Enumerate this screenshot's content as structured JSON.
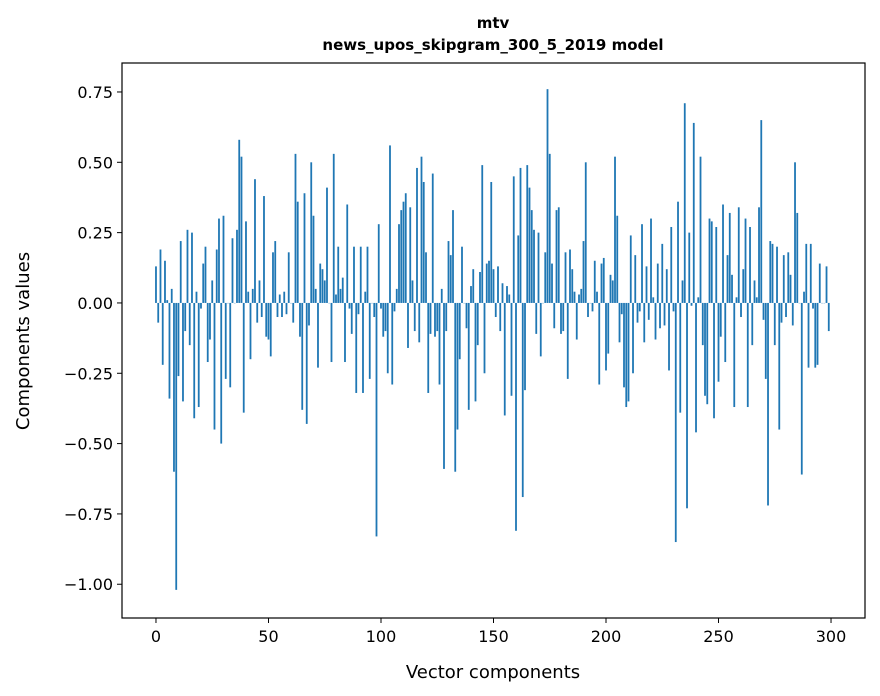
{
  "chart_data": {
    "type": "bar",
    "title": "mtv",
    "subtitle": "news_upos_skipgram_300_5_2019 model",
    "xlabel": "Vector components",
    "ylabel": "Components values",
    "xlim": [
      -15.1,
      315.1
    ],
    "ylim": [
      -1.12,
      0.853
    ],
    "xticks": [
      0,
      50,
      100,
      150,
      200,
      250,
      300
    ],
    "xtick_labels": [
      "0",
      "50",
      "100",
      "150",
      "200",
      "250",
      "300"
    ],
    "yticks": [
      0.75,
      0.5,
      0.25,
      0,
      -0.25,
      -0.5,
      -0.75,
      -1.0
    ],
    "ytick_labels": [
      "0.75",
      "0.50",
      "0.25",
      "0.00",
      "−0.25",
      "−0.50",
      "−0.75",
      "−1.00"
    ],
    "grid": false,
    "bar_color": "#1f77b4",
    "values": [
      0.13,
      -0.07,
      0.19,
      -0.22,
      0.15,
      0.01,
      -0.34,
      0.05,
      -0.6,
      -1.02,
      -0.26,
      0.22,
      -0.35,
      -0.1,
      0.26,
      -0.15,
      0.25,
      -0.41,
      0.04,
      -0.37,
      -0.02,
      0.14,
      0.2,
      -0.21,
      -0.13,
      0.08,
      -0.45,
      0.19,
      0.3,
      -0.5,
      0.31,
      -0.27,
      0.0,
      -0.3,
      0.23,
      0.0,
      0.26,
      0.58,
      0.52,
      -0.39,
      0.29,
      0.04,
      -0.2,
      0.05,
      0.44,
      -0.07,
      0.08,
      -0.05,
      0.38,
      -0.12,
      -0.13,
      -0.19,
      0.18,
      0.22,
      -0.05,
      0.03,
      -0.05,
      0.04,
      -0.04,
      0.18,
      0.0,
      -0.07,
      0.53,
      0.36,
      -0.12,
      -0.38,
      0.39,
      -0.43,
      -0.08,
      0.5,
      0.31,
      0.05,
      -0.23,
      0.14,
      0.12,
      0.08,
      0.41,
      0.0,
      -0.21,
      0.53,
      0.03,
      0.2,
      0.05,
      0.09,
      -0.21,
      0.35,
      -0.02,
      -0.11,
      0.2,
      -0.32,
      -0.04,
      0.2,
      -0.32,
      0.04,
      0.2,
      -0.27,
      0.0,
      -0.05,
      -0.83,
      0.28,
      -0.02,
      -0.12,
      -0.1,
      -0.25,
      0.56,
      -0.29,
      -0.03,
      0.05,
      0.28,
      0.33,
      0.36,
      0.39,
      -0.16,
      0.34,
      0.08,
      -0.1,
      0.48,
      -0.14,
      0.52,
      0.43,
      0.18,
      -0.32,
      -0.11,
      0.46,
      -0.12,
      -0.1,
      -0.29,
      0.05,
      -0.59,
      -0.1,
      0.22,
      0.17,
      0.33,
      -0.6,
      -0.45,
      -0.2,
      0.2,
      0.0,
      -0.09,
      -0.38,
      0.06,
      0.12,
      -0.35,
      -0.15,
      0.11,
      0.49,
      -0.25,
      0.14,
      0.15,
      0.43,
      0.12,
      -0.05,
      0.13,
      -0.1,
      0.07,
      -0.4,
      0.06,
      0.03,
      -0.33,
      0.45,
      -0.81,
      0.24,
      0.48,
      -0.69,
      -0.31,
      0.49,
      0.41,
      0.33,
      0.26,
      -0.11,
      0.25,
      -0.19,
      0.0,
      0.18,
      0.76,
      0.53,
      0.14,
      -0.09,
      0.33,
      0.34,
      -0.11,
      -0.1,
      0.18,
      -0.27,
      0.19,
      0.12,
      0.04,
      -0.13,
      0.03,
      0.05,
      0.22,
      0.5,
      -0.05,
      0.0,
      -0.03,
      0.15,
      0.04,
      -0.29,
      0.14,
      0.16,
      -0.24,
      -0.18,
      0.1,
      0.08,
      0.52,
      0.31,
      -0.14,
      -0.04,
      -0.3,
      -0.37,
      -0.35,
      0.24,
      -0.25,
      0.17,
      -0.07,
      -0.03,
      0.28,
      -0.14,
      0.13,
      -0.06,
      0.3,
      0.02,
      -0.13,
      0.14,
      -0.09,
      0.21,
      -0.08,
      0.12,
      -0.24,
      0.27,
      -0.03,
      -0.85,
      0.36,
      -0.39,
      0.08,
      0.71,
      -0.73,
      0.25,
      -0.01,
      0.64,
      -0.46,
      0.02,
      0.52,
      -0.15,
      -0.33,
      -0.36,
      0.3,
      0.29,
      -0.41,
      0.27,
      -0.28,
      -0.12,
      0.35,
      -0.21,
      0.17,
      0.32,
      0.1,
      -0.37,
      0.02,
      0.34,
      -0.05,
      0.12,
      0.3,
      -0.37,
      0.27,
      -0.15,
      0.08,
      0.02,
      0.34,
      0.65,
      -0.06,
      -0.27,
      -0.72,
      0.22,
      0.21,
      -0.15,
      0.2,
      -0.45,
      -0.07,
      0.17,
      -0.05,
      0.18,
      0.1,
      -0.08,
      0.5,
      0.32,
      0.0,
      -0.61,
      0.04,
      0.21,
      -0.23,
      0.21,
      -0.02,
      -0.23,
      -0.22,
      0.14,
      0.0,
      0.0,
      0.13,
      -0.1
    ]
  }
}
